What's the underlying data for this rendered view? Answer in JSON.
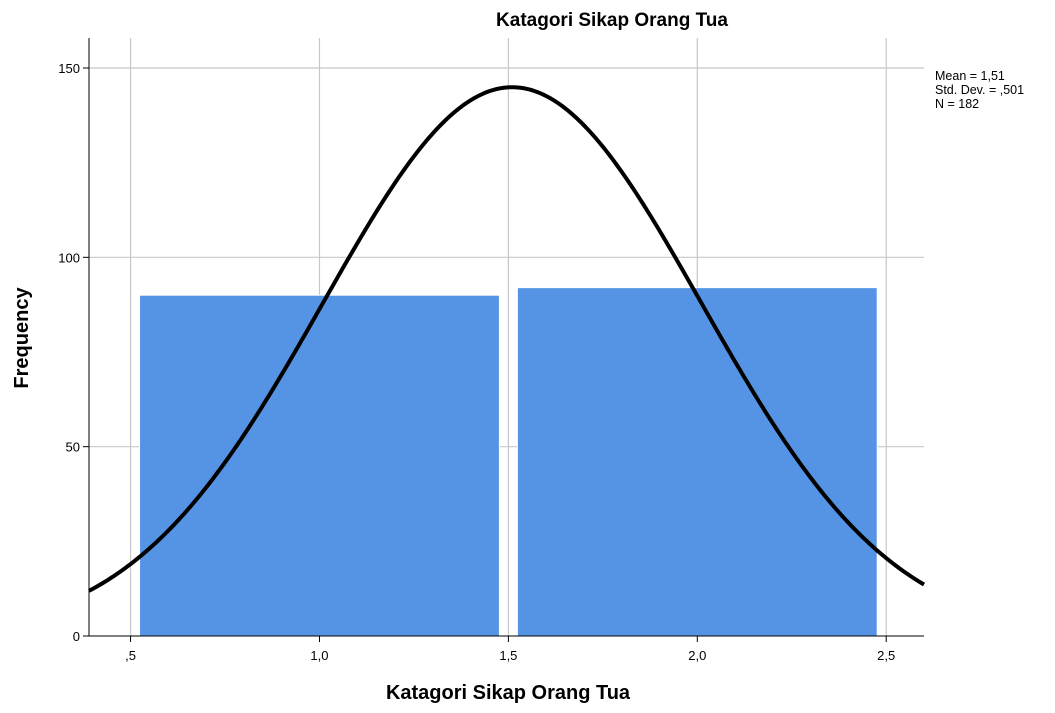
{
  "chart_data": {
    "type": "bar",
    "title": "Katagori Sikap Orang Tua",
    "xlabel": "Katagori Sikap Orang Tua",
    "ylabel": "Frequency",
    "xlim": [
      0.39,
      2.6
    ],
    "ylim": [
      0,
      160
    ],
    "x_ticks": [
      {
        "value": 0.5,
        "label": ",5"
      },
      {
        "value": 1.0,
        "label": "1,0"
      },
      {
        "value": 1.5,
        "label": "1,5"
      },
      {
        "value": 2.0,
        "label": "2,0"
      },
      {
        "value": 2.5,
        "label": "2,5"
      }
    ],
    "y_ticks": [
      {
        "value": 0,
        "label": "0"
      },
      {
        "value": 50,
        "label": "50"
      },
      {
        "value": 100,
        "label": "100"
      },
      {
        "value": 150,
        "label": "150"
      }
    ],
    "grid": true,
    "bins": [
      {
        "start": 0.5,
        "end": 1.5,
        "value": 90
      },
      {
        "start": 1.5,
        "end": 2.5,
        "value": 92
      }
    ],
    "bar_color": "#5594e5",
    "normal_curve": {
      "mean": 1.51,
      "sd": 0.501,
      "n": 182,
      "bin_width": 1.0,
      "color": "#000000"
    },
    "stats": [
      "Mean = 1,51",
      "Std. Dev. = ,501",
      "N = 182"
    ],
    "legend_placement": "top-right"
  }
}
